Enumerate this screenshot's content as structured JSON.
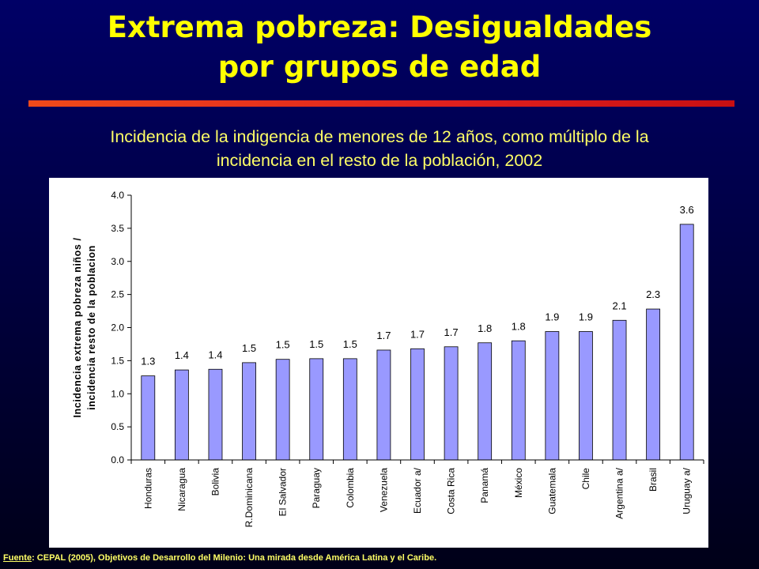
{
  "slide": {
    "title_line1": "Extrema pobreza: Desigualdades",
    "title_line2": "por grupos de edad",
    "subtitle_line1": "Incidencia de la indigencia de menores de 12 años, como múltiplo de la",
    "subtitle_line2": "incidencia en el resto de la población, 2002",
    "footer_label": "Fuente",
    "footer_text": ": CEPAL (2005), Objetivos de Desarrollo del Milenio: Una mirada desde América Latina y el Caribe."
  },
  "colors": {
    "title": "#ffff00",
    "subtitle": "#ffff66",
    "bar_fill": "#9999ff",
    "bar_stroke": "#000000",
    "rule": "#e0201e",
    "background": "#000066"
  },
  "chart_data": {
    "type": "bar",
    "categories": [
      "Honduras",
      "Nicaragua",
      "Bolivia",
      "R.Dominicana",
      "El Salvador",
      "Paraguay",
      "Colombia",
      "Venezuela",
      "Ecuador a/",
      "Costa Rica",
      "Panamá",
      "México",
      "Guatemala",
      "Chile",
      "Argentina a/",
      "Brasil",
      "Uruguay a/"
    ],
    "values": [
      1.27,
      1.36,
      1.37,
      1.47,
      1.52,
      1.53,
      1.53,
      1.66,
      1.68,
      1.71,
      1.77,
      1.8,
      1.94,
      1.94,
      2.11,
      2.28,
      3.56
    ],
    "data_labels": [
      "1.3",
      "1.4",
      "1.4",
      "1.5",
      "1.5",
      "1.5",
      "1.5",
      "1.7",
      "1.7",
      "1.7",
      "1.8",
      "1.8",
      "1.9",
      "1.9",
      "2.1",
      "2.3",
      "3.6"
    ],
    "ylabel_line1": "Incidencia extrema pobreza niños /",
    "ylabel_line2": "incidencia resto de la poblacion",
    "xlabel": "",
    "ylim": [
      0,
      4.0
    ],
    "yticks": [
      "0.0",
      "0.5",
      "1.0",
      "1.5",
      "2.0",
      "2.5",
      "3.0",
      "3.5",
      "4.0"
    ],
    "grid": false,
    "legend": "none"
  }
}
